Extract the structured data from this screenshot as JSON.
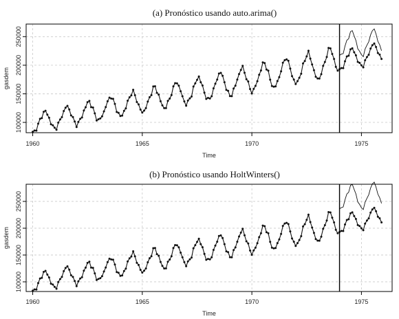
{
  "chart_data": [
    {
      "type": "line",
      "title": "(a)  Pronóstico usando auto.arima()",
      "xlabel": "Time",
      "ylabel": "gasdem",
      "xlim": [
        1959.7,
        1976.4
      ],
      "ylim": [
        82000,
        272000
      ],
      "xticks": [
        "1960",
        "1965",
        "1970",
        "1975"
      ],
      "yticks": [
        "100000",
        "150000",
        "200000",
        "250000"
      ],
      "grid": true,
      "vline": 1974,
      "series": [
        {
          "style": "line-with-points",
          "role": "observed",
          "start": 1960,
          "frequency": 12,
          "params": {
            "base": 98000,
            "slope": 7800,
            "amp": 17000
          }
        },
        {
          "style": "line",
          "role": "forecast",
          "start": 1974,
          "frequency": 12,
          "params": {
            "base": 207000,
            "slope": 6000,
            "amp": 22000
          }
        }
      ]
    },
    {
      "type": "line",
      "title": "(b) Pronóstico usando HoltWinters()",
      "xlabel": "Time",
      "ylabel": "gasdem",
      "xlim": [
        1959.7,
        1976.4
      ],
      "ylim": [
        82000,
        282000
      ],
      "xticks": [
        "1960",
        "1965",
        "1970",
        "1975"
      ],
      "yticks": [
        "100000",
        "150000",
        "200000",
        "250000"
      ],
      "grid": true,
      "vline": 1974,
      "series": [
        {
          "style": "line-with-points",
          "role": "observed",
          "start": 1960,
          "frequency": 12,
          "params": {
            "base": 98000,
            "slope": 7800,
            "amp": 17000
          }
        },
        {
          "style": "line",
          "role": "forecast",
          "start": 1974,
          "frequency": 12,
          "params": {
            "base": 212000,
            "slope": 9000,
            "amp": 23000
          }
        }
      ]
    }
  ]
}
